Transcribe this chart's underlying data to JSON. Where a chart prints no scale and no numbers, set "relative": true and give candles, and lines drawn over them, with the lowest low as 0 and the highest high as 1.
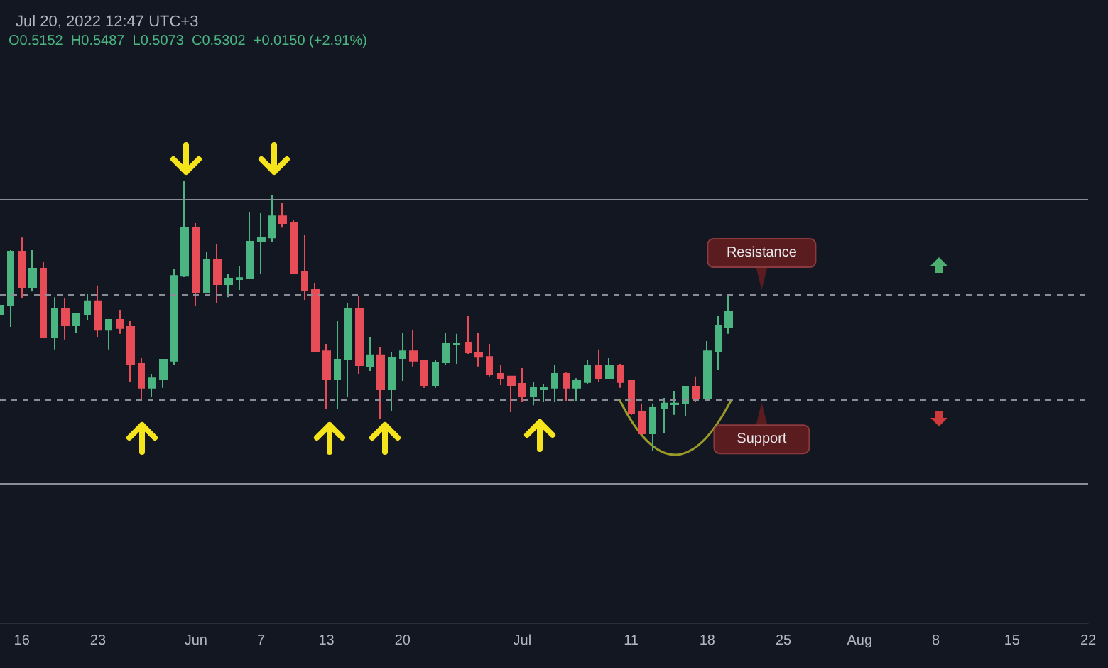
{
  "chart_data": {
    "type": "candlestick",
    "title": "Jul 20, 2022 12:47 UTC+3",
    "relative": true,
    "annotations": [
      "O0.5152  H0.5487  L0.5073  C0.5302  +0.0150 (+2.91%)",
      {
        "text": "Resistance",
        "x": "2022-07-23",
        "y": 0.584
      },
      {
        "text": "Support",
        "x": "2022-07-23",
        "y": 0.189
      }
    ],
    "x": [
      "2022-05-14",
      "2022-05-15",
      "2022-05-16",
      "2022-05-17",
      "2022-05-18",
      "2022-05-19",
      "2022-05-20",
      "2022-05-21",
      "2022-05-22",
      "2022-05-23",
      "2022-05-24",
      "2022-05-25",
      "2022-05-26",
      "2022-05-27",
      "2022-05-28",
      "2022-05-29",
      "2022-05-30",
      "2022-05-31",
      "2022-06-01",
      "2022-06-02",
      "2022-06-03",
      "2022-06-04",
      "2022-06-05",
      "2022-06-06",
      "2022-06-07",
      "2022-06-08",
      "2022-06-09",
      "2022-06-10",
      "2022-06-11",
      "2022-06-12",
      "2022-06-13",
      "2022-06-14",
      "2022-06-15",
      "2022-06-16",
      "2022-06-17",
      "2022-06-18",
      "2022-06-19",
      "2022-06-20",
      "2022-06-21",
      "2022-06-22",
      "2022-06-23",
      "2022-06-24",
      "2022-06-25",
      "2022-06-26",
      "2022-06-27",
      "2022-06-28",
      "2022-06-29",
      "2022-06-30",
      "2022-07-01",
      "2022-07-02",
      "2022-07-03",
      "2022-07-04",
      "2022-07-05",
      "2022-07-06",
      "2022-07-07",
      "2022-07-08",
      "2022-07-09",
      "2022-07-10",
      "2022-07-11",
      "2022-07-12",
      "2022-07-13",
      "2022-07-14",
      "2022-07-15",
      "2022-07-16",
      "2022-07-17",
      "2022-07-18",
      "2022-07-19",
      "2022-07-20"
    ],
    "ohlc": [
      [
        0.505,
        0.547,
        0.5,
        0.537
      ],
      [
        0.537,
        0.742,
        0.458,
        0.737
      ],
      [
        0.737,
        0.789,
        0.563,
        0.605
      ],
      [
        0.605,
        0.742,
        0.589,
        0.674
      ],
      [
        0.674,
        0.7,
        0.421,
        0.421
      ],
      [
        0.421,
        0.568,
        0.374,
        0.526
      ],
      [
        0.526,
        0.563,
        0.411,
        0.463
      ],
      [
        0.463,
        0.505,
        0.437,
        0.505
      ],
      [
        0.505,
        0.579,
        0.484,
        0.553
      ],
      [
        0.553,
        0.611,
        0.421,
        0.447
      ],
      [
        0.447,
        0.484,
        0.374,
        0.484
      ],
      [
        0.484,
        0.521,
        0.432,
        0.453
      ],
      [
        0.458,
        0.479,
        0.253,
        0.321
      ],
      [
        0.321,
        0.342,
        0.184,
        0.232
      ],
      [
        0.232,
        0.284,
        0.2,
        0.268
      ],
      [
        0.263,
        0.337,
        0.232,
        0.337
      ],
      [
        0.332,
        0.674,
        0.316,
        0.647
      ],
      [
        0.647,
        1,
        0.642,
        0.826
      ],
      [
        0.826,
        0.842,
        0.537,
        0.584
      ],
      [
        0.584,
        0.737,
        0.584,
        0.705
      ],
      [
        0.705,
        0.763,
        0.547,
        0.616
      ],
      [
        0.616,
        0.653,
        0.568,
        0.637
      ],
      [
        0.634,
        0.684,
        0.595,
        0.639
      ],
      [
        0.637,
        0.884,
        0.637,
        0.774
      ],
      [
        0.774,
        0.879,
        0.653,
        0.789
      ],
      [
        0.789,
        0.947,
        0.774,
        0.868
      ],
      [
        0.868,
        0.916,
        0.826,
        0.842
      ],
      [
        0.842,
        0.853,
        0.653,
        0.658
      ],
      [
        0.663,
        0.8,
        0.558,
        0.595
      ],
      [
        0.595,
        0.621,
        0.363,
        0.368
      ],
      [
        0.368,
        0.395,
        0.153,
        0.263
      ],
      [
        0.263,
        0.479,
        0.153,
        0.337
      ],
      [
        0.337,
        0.547,
        0.2,
        0.526
      ],
      [
        0.526,
        0.574,
        0.284,
        0.316
      ],
      [
        0.311,
        0.421,
        0.295,
        0.353
      ],
      [
        0.353,
        0.384,
        0.116,
        0.226
      ],
      [
        0.226,
        0.363,
        0.147,
        0.342
      ],
      [
        0.342,
        0.437,
        0.258,
        0.368
      ],
      [
        0.368,
        0.447,
        0.311,
        0.332
      ],
      [
        0.332,
        0.332,
        0.232,
        0.242
      ],
      [
        0.242,
        0.337,
        0.232,
        0.326
      ],
      [
        0.326,
        0.437,
        0.316,
        0.395
      ],
      [
        0.395,
        0.432,
        0.321,
        0.397
      ],
      [
        0.4,
        0.5,
        0.358,
        0.363
      ],
      [
        0.363,
        0.437,
        0.311,
        0.347
      ],
      [
        0.347,
        0.395,
        0.274,
        0.284
      ],
      [
        0.284,
        0.316,
        0.242,
        0.268
      ],
      [
        0.274,
        0.274,
        0.142,
        0.242
      ],
      [
        0.247,
        0.305,
        0.179,
        0.2
      ],
      [
        0.2,
        0.253,
        0.168,
        0.232
      ],
      [
        0.226,
        0.247,
        0.179,
        0.232
      ],
      [
        0.232,
        0.316,
        0.179,
        0.284
      ],
      [
        0.284,
        0.289,
        0.184,
        0.232
      ],
      [
        0.232,
        0.268,
        0.184,
        0.258
      ],
      [
        0.253,
        0.337,
        0.247,
        0.316
      ],
      [
        0.316,
        0.374,
        0.253,
        0.268
      ],
      [
        0.268,
        0.342,
        0.263,
        0.316
      ],
      [
        0.316,
        0.321,
        0.232,
        0.253
      ],
      [
        0.258,
        0.258,
        0.132,
        0.137
      ],
      [
        0.142,
        0.174,
        0.058,
        0.063
      ],
      [
        0.063,
        0.174,
        0,
        0.158
      ],
      [
        0.158,
        0.195,
        0.063,
        0.174
      ],
      [
        0.171,
        0.221,
        0.132,
        0.174
      ],
      [
        0.174,
        0.237,
        0.126,
        0.237
      ],
      [
        0.237,
        0.274,
        0.179,
        0.195
      ],
      [
        0.195,
        0.405,
        0.189,
        0.368
      ],
      [
        0.368,
        0.5,
        0.3,
        0.463
      ],
      [
        0.458,
        0.579,
        0.432,
        0.516
      ]
    ],
    "colors": [
      "#4bb582",
      "#4bb582",
      "#e84d57",
      "#4bb582",
      "#e84d57",
      "#4bb582",
      "#e84d57",
      "#4bb582",
      "#4bb582",
      "#e84d57",
      "#4bb582",
      "#e84d57",
      "#e84d57",
      "#e84d57",
      "#4bb582",
      "#4bb582",
      "#4bb582",
      "#4bb582",
      "#e84d57",
      "#4bb582",
      "#e84d57",
      "#4bb582",
      "#4bb582",
      "#4bb582",
      "#4bb582",
      "#4bb582",
      "#e84d57",
      "#e84d57",
      "#e84d57",
      "#e84d57",
      "#e84d57",
      "#4bb582",
      "#4bb582",
      "#e84d57",
      "#4bb582",
      "#e84d57",
      "#4bb582",
      "#4bb582",
      "#e84d57",
      "#e84d57",
      "#4bb582",
      "#4bb582",
      "#4bb582",
      "#e84d57",
      "#e84d57",
      "#e84d57",
      "#e84d57",
      "#e84d57",
      "#e84d57",
      "#4bb582",
      "#4bb582",
      "#4bb582",
      "#e84d57",
      "#4bb582",
      "#4bb582",
      "#e84d57",
      "#4bb582",
      "#e84d57",
      "#e84d57",
      "#e84d57",
      "#4bb582",
      "#4bb582",
      "#4bb582",
      "#4bb582",
      "#e84d57",
      "#4bb582",
      "#4bb582",
      "#4bb582"
    ],
    "xlim": [
      "2022-05-14",
      "2022-08-22"
    ],
    "xticks": [
      {
        "value": "2022-05-16",
        "label": "16"
      },
      {
        "value": "2022-05-23",
        "label": "23"
      },
      {
        "value": "2022-06-01",
        "label": "Jun"
      },
      {
        "value": "2022-06-07",
        "label": "7"
      },
      {
        "value": "2022-06-13",
        "label": "13"
      },
      {
        "value": "2022-06-20",
        "label": "20"
      },
      {
        "value": "2022-07-01",
        "label": "Jul"
      },
      {
        "value": "2022-07-11",
        "label": "11"
      },
      {
        "value": "2022-07-18",
        "label": "18"
      },
      {
        "value": "2022-07-25",
        "label": "25"
      },
      {
        "value": "2022-08-01",
        "label": "Aug"
      },
      {
        "value": "2022-08-08",
        "label": "8"
      },
      {
        "value": "2022-08-15",
        "label": "15"
      },
      {
        "value": "2022-08-22",
        "label": "22"
      }
    ],
    "ref_lines": [
      {
        "axis": "y",
        "value": 0.926,
        "color": "#8a8d96",
        "line_style": "solid"
      },
      {
        "axis": "y",
        "value": 0.584,
        "color": "#8a8d96",
        "line_style": "dashed"
      },
      {
        "axis": "y",
        "value": 0.189,
        "color": "#8a8d96",
        "line_style": "dashed"
      },
      {
        "axis": "y",
        "value": -0.116,
        "color": "#8a8d96",
        "line_style": "solid"
      }
    ]
  }
}
